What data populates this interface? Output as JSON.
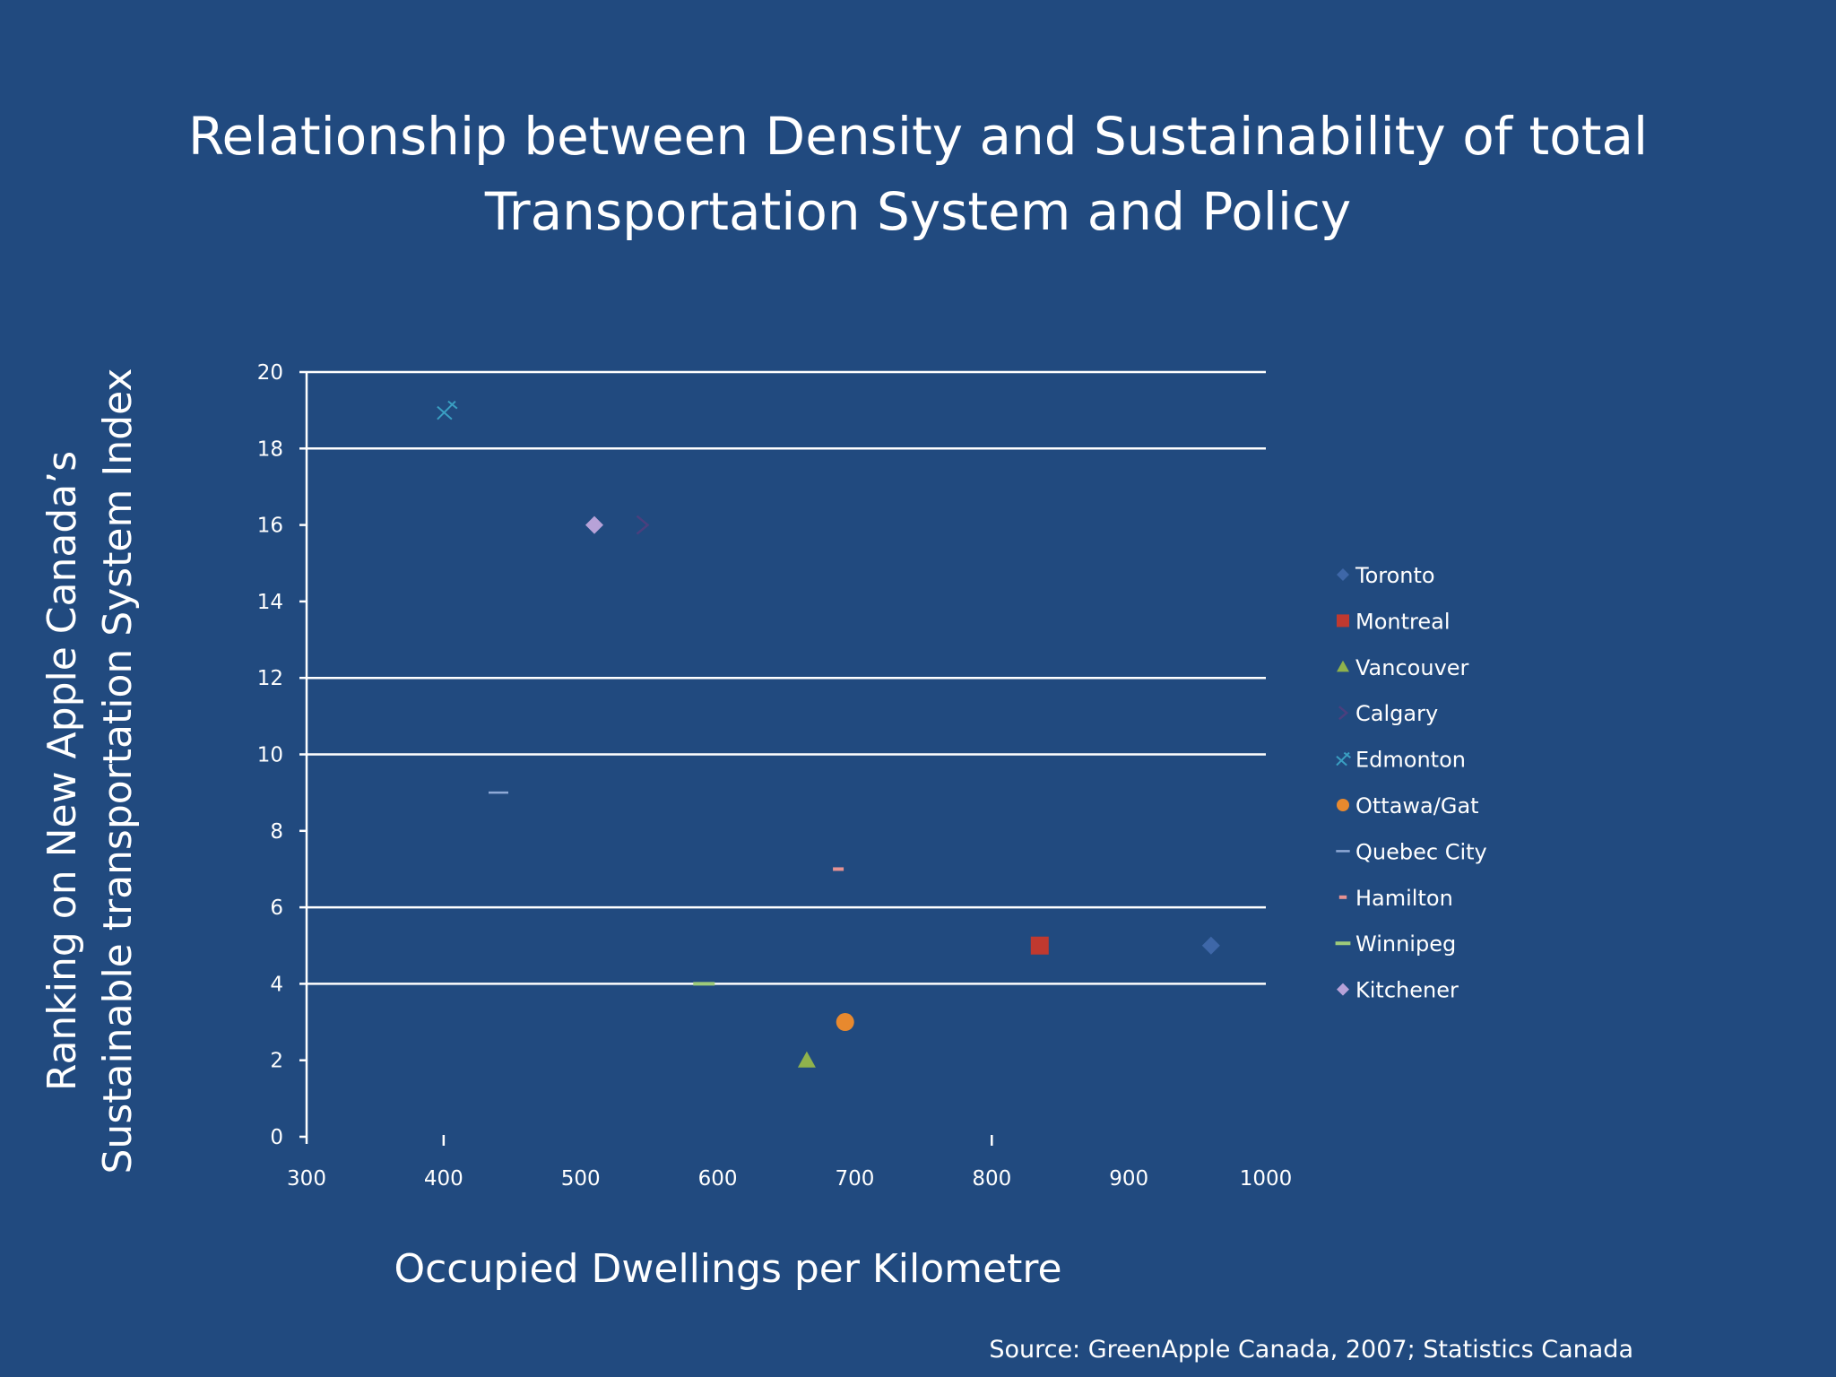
{
  "slide": {
    "title_line1": "Relationship between Density and Sustainability of total",
    "title_line2": "Transportation System and Policy",
    "source": "Source: GreenApple Canada, 2007; Statistics Canada"
  },
  "chart_data": {
    "type": "scatter",
    "title": "Relationship between Density and Sustainability of total Transportation System and Policy",
    "xlabel": "Occupied Dwellings per Kilometre",
    "ylabel_line1": "Ranking on New Apple Canada’s",
    "ylabel_line2": "Sustainable transportation System Index",
    "xlim": [
      300,
      1000
    ],
    "ylim": [
      0,
      20
    ],
    "xticks": [
      300,
      400,
      500,
      600,
      700,
      800,
      900,
      1000
    ],
    "yticks": [
      0,
      2,
      4,
      6,
      8,
      10,
      12,
      14,
      16,
      18,
      20
    ],
    "grid": "horizontal",
    "legend_position": "right",
    "series": [
      {
        "name": "Toronto",
        "marker": "diamond",
        "color": "#3e67a8",
        "points": [
          {
            "x": 960,
            "y": 5
          }
        ]
      },
      {
        "name": "Montreal",
        "marker": "square",
        "color": "#c0392f",
        "points": [
          {
            "x": 835,
            "y": 5
          }
        ]
      },
      {
        "name": "Vancouver",
        "marker": "triangle",
        "color": "#8fb24c",
        "points": [
          {
            "x": 665,
            "y": 2
          }
        ]
      },
      {
        "name": "Calgary",
        "marker": "x",
        "color": "#4b3f7e",
        "points": [
          {
            "x": 545,
            "y": 16
          }
        ]
      },
      {
        "name": "Edmonton",
        "marker": "star",
        "color": "#3a9fc2",
        "points": [
          {
            "x": 402,
            "y": 19
          }
        ]
      },
      {
        "name": "Ottawa/Gat",
        "marker": "circle",
        "color": "#e8892e",
        "points": [
          {
            "x": 693,
            "y": 3
          }
        ]
      },
      {
        "name": "Quebec City",
        "marker": "dash-long",
        "color": "#8fa9d6",
        "points": [
          {
            "x": 440,
            "y": 9
          }
        ]
      },
      {
        "name": "Hamilton",
        "marker": "dash-short",
        "color": "#e69292",
        "points": [
          {
            "x": 688,
            "y": 7
          }
        ]
      },
      {
        "name": "Winnipeg",
        "marker": "dash-thick",
        "color": "#9fcb7a",
        "points": [
          {
            "x": 590,
            "y": 4
          }
        ]
      },
      {
        "name": "Kitchener",
        "marker": "diamond",
        "color": "#b7a2d8",
        "points": [
          {
            "x": 510,
            "y": 16
          }
        ]
      }
    ]
  }
}
